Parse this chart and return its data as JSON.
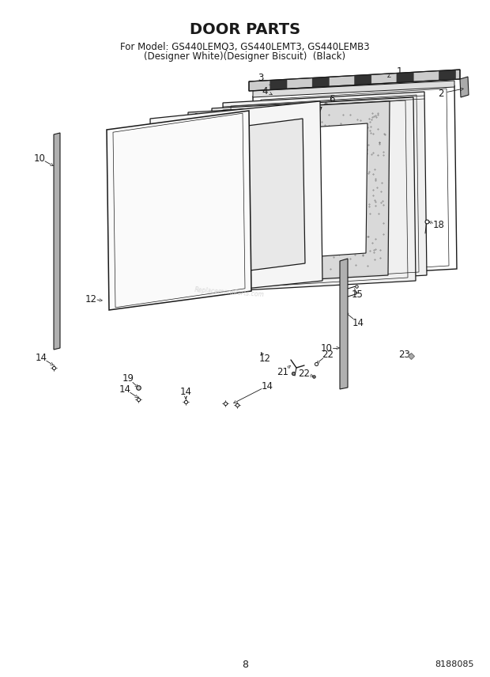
{
  "title": "DOOR PARTS",
  "subtitle_line1": "For Model: GS440LEMQ3, GS440LEMT3, GS440LEMB3",
  "subtitle_line2": "(Designer White)(Designer Biscuit)  (Black)",
  "page_number": "8",
  "part_number": "8188085",
  "background_color": "#ffffff",
  "line_color": "#1a1a1a",
  "title_fontsize": 14,
  "subtitle_fontsize": 8.5,
  "annotation_fontsize": 8.5,
  "fig_width": 6.2,
  "fig_height": 8.56,
  "dpi": 100
}
